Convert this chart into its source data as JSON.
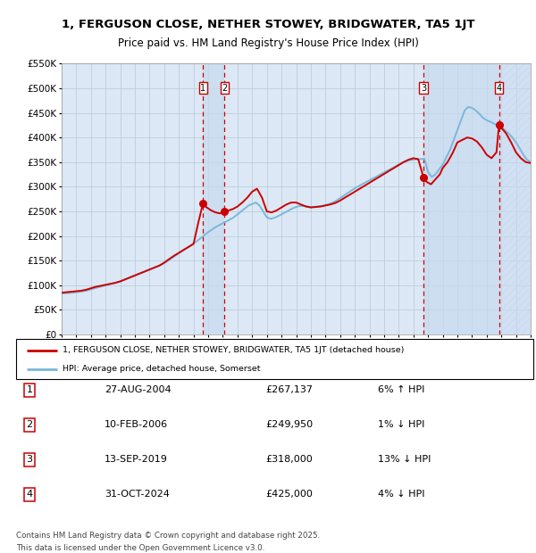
{
  "title": "1, FERGUSON CLOSE, NETHER STOWEY, BRIDGWATER, TA5 1JT",
  "subtitle": "Price paid vs. HM Land Registry's House Price Index (HPI)",
  "legend_line1": "1, FERGUSON CLOSE, NETHER STOWEY, BRIDGWATER, TA5 1JT (detached house)",
  "legend_line2": "HPI: Average price, detached house, Somerset",
  "transactions": [
    {
      "num": 1,
      "date": "27-AUG-2004",
      "year": 2004.65,
      "price": 267137,
      "pct": "6%",
      "dir": "↑"
    },
    {
      "num": 2,
      "date": "10-FEB-2006",
      "year": 2006.12,
      "price": 249950,
      "pct": "1%",
      "dir": "↓"
    },
    {
      "num": 3,
      "date": "13-SEP-2019",
      "year": 2019.7,
      "price": 318000,
      "pct": "13%",
      "dir": "↓"
    },
    {
      "num": 4,
      "date": "31-OCT-2024",
      "year": 2024.84,
      "price": 425000,
      "pct": "4%",
      "dir": "↓"
    }
  ],
  "footnote1": "Contains HM Land Registry data © Crown copyright and database right 2025.",
  "footnote2": "This data is licensed under the Open Government Licence v3.0.",
  "xmin": 1995,
  "xmax": 2027,
  "ymin": 0,
  "ymax": 550000,
  "yticks": [
    0,
    50000,
    100000,
    150000,
    200000,
    250000,
    300000,
    350000,
    400000,
    450000,
    500000,
    550000
  ],
  "hpi_color": "#7ab8d9",
  "price_color": "#cc0000",
  "bg_color": "#dce8f5",
  "grid_color": "#b8c8d8",
  "shade_color": "#c8daf0",
  "dashed_color": "#cc0000",
  "hpi_years": [
    1995.0,
    1995.25,
    1995.5,
    1995.75,
    1996.0,
    1996.25,
    1996.5,
    1996.75,
    1997.0,
    1997.25,
    1997.5,
    1997.75,
    1998.0,
    1998.25,
    1998.5,
    1998.75,
    1999.0,
    1999.25,
    1999.5,
    1999.75,
    2000.0,
    2000.25,
    2000.5,
    2000.75,
    2001.0,
    2001.25,
    2001.5,
    2001.75,
    2002.0,
    2002.25,
    2002.5,
    2002.75,
    2003.0,
    2003.25,
    2003.5,
    2003.75,
    2004.0,
    2004.25,
    2004.5,
    2004.75,
    2005.0,
    2005.25,
    2005.5,
    2005.75,
    2006.0,
    2006.25,
    2006.5,
    2006.75,
    2007.0,
    2007.25,
    2007.5,
    2007.75,
    2008.0,
    2008.25,
    2008.5,
    2008.75,
    2009.0,
    2009.25,
    2009.5,
    2009.75,
    2010.0,
    2010.25,
    2010.5,
    2010.75,
    2011.0,
    2011.25,
    2011.5,
    2011.75,
    2012.0,
    2012.25,
    2012.5,
    2012.75,
    2013.0,
    2013.25,
    2013.5,
    2013.75,
    2014.0,
    2014.25,
    2014.5,
    2014.75,
    2015.0,
    2015.25,
    2015.5,
    2015.75,
    2016.0,
    2016.25,
    2016.5,
    2016.75,
    2017.0,
    2017.25,
    2017.5,
    2017.75,
    2018.0,
    2018.25,
    2018.5,
    2018.75,
    2019.0,
    2019.25,
    2019.5,
    2019.75,
    2020.0,
    2020.25,
    2020.5,
    2020.75,
    2021.0,
    2021.25,
    2021.5,
    2021.75,
    2022.0,
    2022.25,
    2022.5,
    2022.75,
    2023.0,
    2023.25,
    2023.5,
    2023.75,
    2024.0,
    2024.25,
    2024.5,
    2024.75,
    2025.0,
    2025.25,
    2025.5,
    2025.75,
    2026.0,
    2026.25,
    2026.5,
    2026.75,
    2027.0
  ],
  "hpi_vals": [
    83000,
    84000,
    84500,
    85000,
    86000,
    87000,
    88000,
    89500,
    92000,
    94000,
    96000,
    98000,
    100000,
    102000,
    104000,
    106000,
    108000,
    111000,
    114000,
    117000,
    120000,
    123000,
    126000,
    129000,
    132000,
    135000,
    138000,
    141000,
    145000,
    150000,
    155000,
    160000,
    165000,
    170000,
    175000,
    180000,
    185000,
    190000,
    196000,
    202000,
    208000,
    213000,
    218000,
    222000,
    226000,
    230000,
    234000,
    238000,
    244000,
    250000,
    256000,
    262000,
    265000,
    268000,
    262000,
    250000,
    238000,
    235000,
    237000,
    240000,
    244000,
    248000,
    252000,
    256000,
    259000,
    261000,
    261000,
    260000,
    259000,
    259000,
    260000,
    261000,
    263000,
    265000,
    268000,
    272000,
    277000,
    282000,
    287000,
    292000,
    297000,
    301000,
    305000,
    309000,
    313000,
    317000,
    321000,
    325000,
    329000,
    333000,
    337000,
    341000,
    345000,
    349000,
    352000,
    354000,
    355000,
    356000,
    356000,
    357000,
    330000,
    320000,
    325000,
    335000,
    345000,
    360000,
    375000,
    395000,
    415000,
    435000,
    455000,
    462000,
    460000,
    455000,
    448000,
    440000,
    435000,
    432000,
    428000,
    424000,
    420000,
    415000,
    408000,
    400000,
    390000,
    378000,
    365000,
    355000,
    350000
  ],
  "price_years": [
    1995.0,
    1995.33,
    1995.67,
    1996.0,
    1996.33,
    1996.67,
    1997.0,
    1997.33,
    1997.67,
    1998.0,
    1998.33,
    1998.67,
    1999.0,
    1999.33,
    1999.67,
    2000.0,
    2000.33,
    2000.67,
    2001.0,
    2001.33,
    2001.67,
    2002.0,
    2002.33,
    2002.67,
    2003.0,
    2003.33,
    2003.67,
    2004.0,
    2004.33,
    2004.65,
    2004.9,
    2005.2,
    2005.5,
    2005.8,
    2006.12,
    2006.4,
    2006.7,
    2007.0,
    2007.33,
    2007.67,
    2008.0,
    2008.33,
    2008.67,
    2009.0,
    2009.33,
    2009.67,
    2010.0,
    2010.33,
    2010.67,
    2011.0,
    2011.33,
    2011.67,
    2012.0,
    2012.33,
    2012.67,
    2013.0,
    2013.33,
    2013.67,
    2014.0,
    2014.33,
    2014.67,
    2015.0,
    2015.33,
    2015.67,
    2016.0,
    2016.33,
    2016.67,
    2017.0,
    2017.33,
    2017.67,
    2018.0,
    2018.33,
    2018.67,
    2019.0,
    2019.33,
    2019.7,
    2019.9,
    2020.2,
    2020.5,
    2020.8,
    2021.0,
    2021.33,
    2021.67,
    2022.0,
    2022.33,
    2022.67,
    2023.0,
    2023.33,
    2023.67,
    2024.0,
    2024.33,
    2024.67,
    2024.84,
    2025.0,
    2025.33,
    2025.67,
    2026.0,
    2026.33,
    2026.67,
    2027.0
  ],
  "price_vals": [
    85000,
    86000,
    87000,
    88000,
    89000,
    91000,
    94000,
    97000,
    99000,
    101000,
    103000,
    105000,
    108000,
    112000,
    116000,
    120000,
    124000,
    128000,
    132000,
    136000,
    140000,
    146000,
    153000,
    160000,
    166000,
    172000,
    178000,
    184000,
    228000,
    267137,
    258000,
    252000,
    248000,
    246000,
    249950,
    252000,
    255000,
    260000,
    268000,
    278000,
    290000,
    296000,
    278000,
    250000,
    248000,
    252000,
    258000,
    264000,
    268000,
    268000,
    264000,
    260000,
    258000,
    259000,
    260000,
    262000,
    264000,
    267000,
    272000,
    278000,
    284000,
    290000,
    296000,
    302000,
    308000,
    314000,
    320000,
    326000,
    332000,
    338000,
    344000,
    350000,
    355000,
    358000,
    356000,
    318000,
    310000,
    305000,
    315000,
    325000,
    338000,
    350000,
    368000,
    390000,
    395000,
    400000,
    398000,
    392000,
    380000,
    365000,
    358000,
    370000,
    425000,
    420000,
    408000,
    390000,
    370000,
    358000,
    350000,
    348000
  ]
}
